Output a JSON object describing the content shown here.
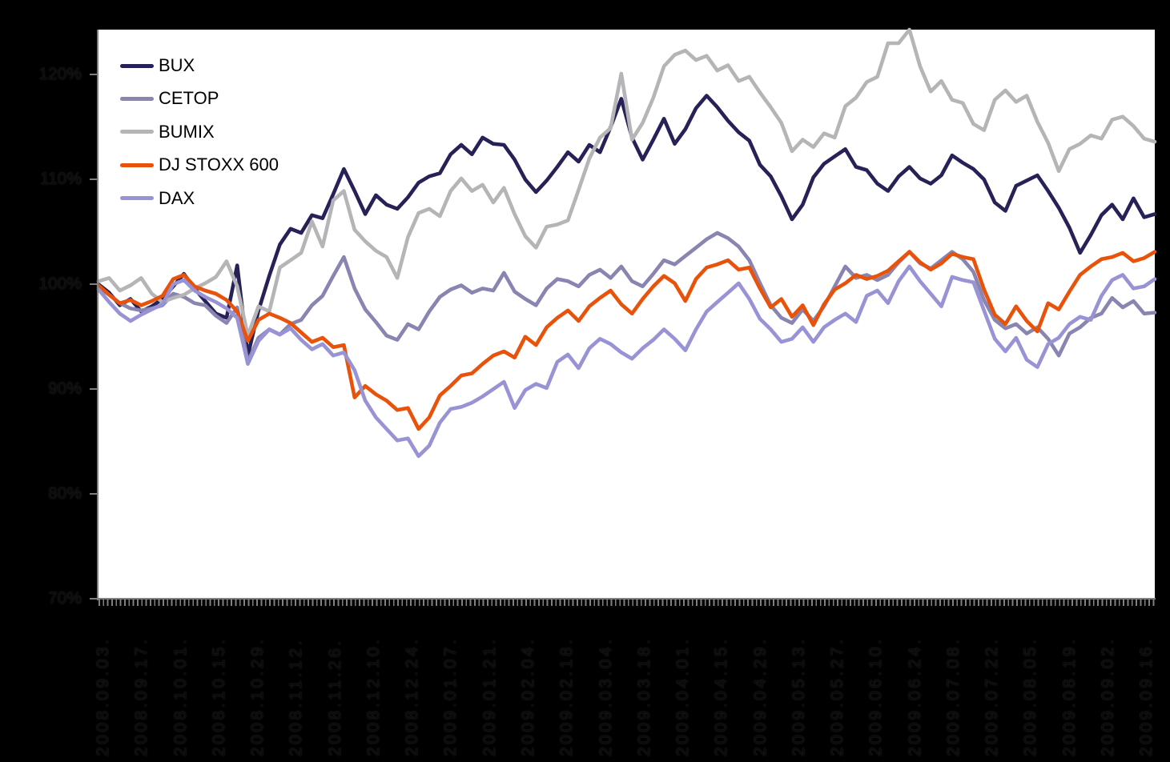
{
  "chart_data": {
    "type": "line",
    "title": "",
    "xlabel": "",
    "ylabel": "",
    "ylim": [
      70,
      124.3
    ],
    "grid": false,
    "legend_position": "top-left",
    "background_color": "#000000",
    "plot_background_color": "#ffffff",
    "axis_color": "#808080",
    "y_ticks": {
      "values": [
        120,
        110,
        100,
        90,
        80,
        70
      ],
      "labels": [
        "120%",
        "110%",
        "100%",
        "90%",
        "80%",
        "70%"
      ]
    },
    "x_labels": [
      "2008.09.03.",
      "2008.09.17.",
      "2008.10.01.",
      "2008.10.15.",
      "2008.10.29.",
      "2008.11.12.",
      "2008.11.26.",
      "2008.12.10.",
      "2008.12.24.",
      "2009.01.07.",
      "2009.01.21.",
      "2009.02.04.",
      "2009.02.18.",
      "2009.03.04.",
      "2009.03.18.",
      "2009.04.01.",
      "2009.04.15.",
      "2009.04.29.",
      "2009.05.13.",
      "2009.05.27.",
      "2009.06.10.",
      "2009.06.24.",
      "2009.07.08.",
      "2009.07.22.",
      "2009.08.05.",
      "2009.08.19.",
      "2009.09.02.",
      "2009.09.16."
    ],
    "series": [
      {
        "name": "BUX",
        "color": "#262257",
        "values": [
          100.0,
          99.2,
          98.0,
          98.6,
          97.4,
          97.9,
          98.6,
          99.8,
          101.0,
          99.6,
          98.4,
          97.2,
          96.8,
          101.8,
          93.2,
          97.5,
          100.8,
          103.8,
          105.3,
          104.9,
          106.6,
          106.3,
          108.6,
          111.0,
          108.9,
          106.7,
          108.5,
          107.6,
          107.2,
          108.3,
          109.7,
          110.3,
          110.6,
          112.4,
          113.3,
          112.4,
          114.0,
          113.4,
          113.3,
          111.9,
          110.0,
          108.8,
          109.9,
          111.2,
          112.6,
          111.7,
          113.3,
          112.6,
          115.0,
          117.7,
          114.0,
          111.9,
          113.8,
          115.8,
          113.4,
          114.8,
          116.8,
          118.0,
          116.9,
          115.6,
          114.5,
          113.7,
          111.4,
          110.3,
          108.4,
          106.2,
          107.6,
          110.2,
          111.5,
          112.2,
          112.9,
          111.2,
          110.9,
          109.6,
          108.9,
          110.3,
          111.2,
          110.1,
          109.6,
          110.4,
          112.3,
          111.6,
          111.0,
          110.0,
          107.8,
          107.0,
          109.4,
          109.9,
          110.4,
          108.9,
          107.3,
          105.4,
          103.0,
          104.7,
          106.6,
          107.6,
          106.2,
          108.2,
          106.4,
          106.7
        ]
      },
      {
        "name": "CETOP",
        "color": "#8885B1",
        "values": [
          99.7,
          99.0,
          98.2,
          97.7,
          97.5,
          97.7,
          98.0,
          99.1,
          98.8,
          98.2,
          98.0,
          97.0,
          96.3,
          97.8,
          92.6,
          94.9,
          95.7,
          95.2,
          96.2,
          96.6,
          98.0,
          98.9,
          100.8,
          102.6,
          99.6,
          97.6,
          96.4,
          95.1,
          94.7,
          96.2,
          95.7,
          97.4,
          98.8,
          99.5,
          99.9,
          99.2,
          99.6,
          99.4,
          101.1,
          99.3,
          98.6,
          98.0,
          99.6,
          100.5,
          100.3,
          99.8,
          100.9,
          101.4,
          100.6,
          101.7,
          100.3,
          99.8,
          101.0,
          102.3,
          101.9,
          102.7,
          103.5,
          104.3,
          104.9,
          104.4,
          103.6,
          102.3,
          100.1,
          98.0,
          96.8,
          96.3,
          97.6,
          96.5,
          97.9,
          99.8,
          101.7,
          100.6,
          100.9,
          100.4,
          100.9,
          102.1,
          103.1,
          102.0,
          101.5,
          102.3,
          103.1,
          102.4,
          101.2,
          98.5,
          96.6,
          95.8,
          96.2,
          95.3,
          95.9,
          94.8,
          93.2,
          95.3,
          95.9,
          96.8,
          97.2,
          98.7,
          97.8,
          98.4,
          97.2,
          97.3
        ]
      },
      {
        "name": "BUMIX",
        "color": "#B5B5B8",
        "values": [
          100.3,
          100.6,
          99.4,
          99.9,
          100.6,
          99.1,
          98.3,
          98.7,
          99.0,
          99.6,
          100.1,
          100.7,
          102.2,
          99.8,
          95.1,
          97.9,
          97.4,
          101.6,
          102.3,
          103.0,
          106.0,
          103.6,
          108.0,
          108.9,
          105.2,
          104.1,
          103.2,
          102.6,
          100.6,
          104.5,
          106.8,
          107.2,
          106.5,
          108.9,
          110.1,
          108.9,
          109.5,
          107.8,
          109.2,
          106.7,
          104.6,
          103.5,
          105.5,
          105.7,
          106.1,
          109.0,
          112.0,
          114.0,
          114.9,
          120.1,
          113.8,
          115.4,
          117.8,
          120.8,
          121.9,
          122.3,
          121.4,
          121.8,
          120.4,
          120.9,
          119.4,
          119.8,
          118.3,
          116.9,
          115.4,
          112.7,
          113.8,
          113.1,
          114.4,
          114.0,
          117.0,
          117.8,
          119.3,
          119.8,
          123.0,
          123.0,
          124.3,
          120.8,
          118.4,
          119.4,
          117.6,
          117.3,
          115.3,
          114.7,
          117.6,
          118.5,
          117.4,
          118.0,
          115.5,
          113.5,
          110.8,
          112.9,
          113.4,
          114.2,
          113.9,
          115.7,
          116.0,
          115.1,
          113.9,
          113.6
        ]
      },
      {
        "name": "DJ STOXX 600",
        "color": "#E8520A",
        "values": [
          99.9,
          99.0,
          98.2,
          98.5,
          98.0,
          98.4,
          98.9,
          100.5,
          100.9,
          99.8,
          99.4,
          99.1,
          98.5,
          97.4,
          94.6,
          96.6,
          97.2,
          96.8,
          96.3,
          95.4,
          94.5,
          94.9,
          94.0,
          94.2,
          89.2,
          90.3,
          89.5,
          88.9,
          88.0,
          88.2,
          86.2,
          87.3,
          89.4,
          90.3,
          91.3,
          91.5,
          92.4,
          93.2,
          93.6,
          93.0,
          95.0,
          94.2,
          95.9,
          96.8,
          97.5,
          96.5,
          97.9,
          98.7,
          99.4,
          98.1,
          97.2,
          98.6,
          99.8,
          100.8,
          100.1,
          98.4,
          100.5,
          101.6,
          101.9,
          102.3,
          101.4,
          101.6,
          99.6,
          97.8,
          98.6,
          96.9,
          98.0,
          96.1,
          98.1,
          99.5,
          100.1,
          100.9,
          100.5,
          100.8,
          101.3,
          102.2,
          103.1,
          102.1,
          101.4,
          102.0,
          102.9,
          102.6,
          102.4,
          99.5,
          97.1,
          96.2,
          97.9,
          96.5,
          95.5,
          98.2,
          97.6,
          99.3,
          100.9,
          101.7,
          102.4,
          102.6,
          103.0,
          102.2,
          102.5,
          103.1
        ]
      },
      {
        "name": "DAX",
        "color": "#9893D4",
        "values": [
          99.5,
          98.3,
          97.2,
          96.5,
          97.1,
          97.6,
          98.1,
          100.0,
          100.4,
          99.4,
          98.8,
          98.3,
          97.7,
          96.8,
          92.4,
          94.6,
          95.7,
          95.2,
          95.8,
          94.7,
          93.8,
          94.3,
          93.2,
          93.5,
          91.8,
          88.9,
          87.3,
          86.2,
          85.1,
          85.3,
          83.6,
          84.6,
          86.8,
          88.1,
          88.3,
          88.7,
          89.3,
          90.0,
          90.7,
          88.2,
          89.9,
          90.5,
          90.1,
          92.6,
          93.3,
          92.0,
          93.9,
          94.8,
          94.3,
          93.5,
          92.9,
          93.9,
          94.7,
          95.7,
          94.8,
          93.7,
          95.7,
          97.4,
          98.3,
          99.2,
          100.1,
          98.6,
          96.7,
          95.7,
          94.5,
          94.8,
          95.9,
          94.5,
          95.9,
          96.6,
          97.2,
          96.4,
          98.9,
          99.4,
          98.2,
          100.3,
          101.7,
          100.3,
          99.1,
          97.9,
          100.7,
          100.4,
          100.2,
          97.5,
          94.8,
          93.6,
          94.9,
          92.8,
          92.1,
          94.3,
          94.9,
          96.2,
          96.9,
          96.6,
          98.9,
          100.4,
          100.9,
          99.6,
          99.8,
          100.5
        ]
      }
    ]
  }
}
